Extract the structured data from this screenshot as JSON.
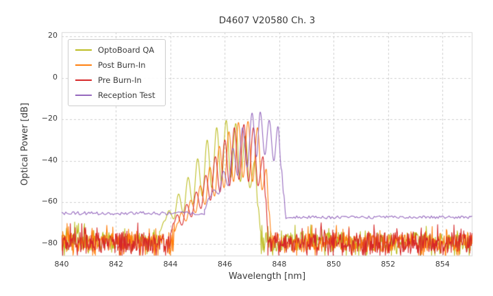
{
  "chart_data": {
    "type": "line",
    "title": "D4607 V20580 Ch. 3",
    "xlabel": "Wavelength [nm]",
    "ylabel": "Optical Power [dB]",
    "xlim": [
      840,
      855.1
    ],
    "ylim": [
      -86,
      22
    ],
    "xticks": [
      840,
      842,
      844,
      846,
      848,
      850,
      852,
      854
    ],
    "yticks": [
      20,
      0,
      -20,
      -40,
      -60,
      -80
    ],
    "grid": true,
    "legend_position": "upper left",
    "grid_color": "#cccccc",
    "series": [
      {
        "name": "OptoBoard QA",
        "color": "#bcbd22",
        "noise_floor_db": -79,
        "segments": [
          {
            "type": "noise",
            "x0": 840.0,
            "x1": 843.6,
            "base": -79,
            "spread": 9,
            "spiky": true
          },
          {
            "type": "keypoints",
            "points": [
              [
                843.6,
                -74
              ],
              [
                843.78,
                -69
              ],
              [
                843.95,
                -64
              ],
              [
                844.12,
                -68
              ],
              [
                844.3,
                -56
              ],
              [
                844.47,
                -65
              ],
              [
                844.65,
                -48
              ],
              [
                844.82,
                -61
              ],
              [
                845.0,
                -39
              ],
              [
                845.17,
                -57
              ],
              [
                845.35,
                -30
              ],
              [
                845.52,
                -53
              ],
              [
                845.7,
                -24
              ],
              [
                845.87,
                -50
              ],
              [
                846.05,
                -20.5
              ],
              [
                846.22,
                -48
              ],
              [
                846.4,
                -22
              ],
              [
                846.57,
                -50
              ],
              [
                846.75,
                -28
              ],
              [
                846.92,
                -53
              ],
              [
                847.1,
                -40
              ],
              [
                847.22,
                -62
              ],
              [
                847.32,
                -74
              ]
            ]
          },
          {
            "type": "noise",
            "x0": 847.32,
            "x1": 855.1,
            "base": -79,
            "spread": 9,
            "spiky": true
          }
        ]
      },
      {
        "name": "Post Burn-In",
        "color": "#ff7f0e",
        "noise_floor_db": -79.5,
        "segments": [
          {
            "type": "noise",
            "x0": 840.0,
            "x1": 844.15,
            "base": -79.5,
            "spread": 9,
            "spiky": true
          },
          {
            "type": "keypoints",
            "points": [
              [
                844.15,
                -74
              ],
              [
                844.27,
                -70
              ],
              [
                844.4,
                -65
              ],
              [
                844.57,
                -69
              ],
              [
                844.75,
                -59
              ],
              [
                844.92,
                -65
              ],
              [
                845.1,
                -52
              ],
              [
                845.27,
                -61
              ],
              [
                845.45,
                -43
              ],
              [
                845.62,
                -57
              ],
              [
                845.8,
                -33
              ],
              [
                845.97,
                -53
              ],
              [
                846.15,
                -26
              ],
              [
                846.32,
                -50
              ],
              [
                846.5,
                -21.5
              ],
              [
                846.67,
                -48
              ],
              [
                846.85,
                -21
              ],
              [
                847.02,
                -50
              ],
              [
                847.2,
                -24
              ],
              [
                847.37,
                -54
              ],
              [
                847.52,
                -44
              ],
              [
                847.62,
                -64
              ],
              [
                847.7,
                -75
              ]
            ]
          },
          {
            "type": "noise",
            "x0": 847.7,
            "x1": 855.1,
            "base": -79.5,
            "spread": 9,
            "spiky": true
          }
        ]
      },
      {
        "name": "Pre Burn-In",
        "color": "#d62728",
        "noise_floor_db": -79.5,
        "segments": [
          {
            "type": "noise",
            "x0": 840.0,
            "x1": 844.0,
            "base": -79.5,
            "spread": 10,
            "spiky": true
          },
          {
            "type": "keypoints",
            "points": [
              [
                844.0,
                -75
              ],
              [
                844.12,
                -70
              ],
              [
                844.25,
                -66
              ],
              [
                844.42,
                -71
              ],
              [
                844.6,
                -61
              ],
              [
                844.77,
                -67
              ],
              [
                844.95,
                -55
              ],
              [
                845.12,
                -63
              ],
              [
                845.3,
                -47
              ],
              [
                845.47,
                -59
              ],
              [
                845.65,
                -38
              ],
              [
                845.82,
                -55
              ],
              [
                846.0,
                -30
              ],
              [
                846.17,
                -52
              ],
              [
                846.35,
                -24
              ],
              [
                846.52,
                -49
              ],
              [
                846.7,
                -22.5
              ],
              [
                846.87,
                -50
              ],
              [
                847.05,
                -24
              ],
              [
                847.22,
                -52
              ],
              [
                847.4,
                -38
              ],
              [
                847.5,
                -58
              ],
              [
                847.58,
                -74
              ]
            ]
          },
          {
            "type": "noise",
            "x0": 847.58,
            "x1": 855.1,
            "base": -79.5,
            "spread": 10,
            "spiky": true
          }
        ]
      },
      {
        "name": "Reception Test",
        "color": "#9467bd",
        "noise_floor_db": -65.3,
        "segments": [
          {
            "type": "noise",
            "x0": 840.0,
            "x1": 845.25,
            "base": -65.3,
            "spread": 1.6,
            "spiky": false
          },
          {
            "type": "keypoints",
            "points": [
              [
                845.25,
                -63.5
              ],
              [
                845.42,
                -58
              ],
              [
                845.6,
                -54
              ],
              [
                845.77,
                -56
              ],
              [
                845.95,
                -45
              ],
              [
                846.12,
                -52
              ],
              [
                846.3,
                -34
              ],
              [
                846.47,
                -47
              ],
              [
                846.65,
                -24
              ],
              [
                846.82,
                -43
              ],
              [
                847.0,
                -17
              ],
              [
                847.16,
                -38
              ],
              [
                847.3,
                -16.5
              ],
              [
                847.47,
                -37
              ],
              [
                847.63,
                -20.5
              ],
              [
                847.8,
                -40
              ],
              [
                847.95,
                -23.5
              ],
              [
                848.08,
                -44
              ],
              [
                848.16,
                -56
              ],
              [
                848.24,
                -66.5
              ]
            ]
          },
          {
            "type": "noise",
            "x0": 848.24,
            "x1": 855.1,
            "base": -67.2,
            "spread": 1.4,
            "spiky": false
          }
        ]
      }
    ]
  }
}
